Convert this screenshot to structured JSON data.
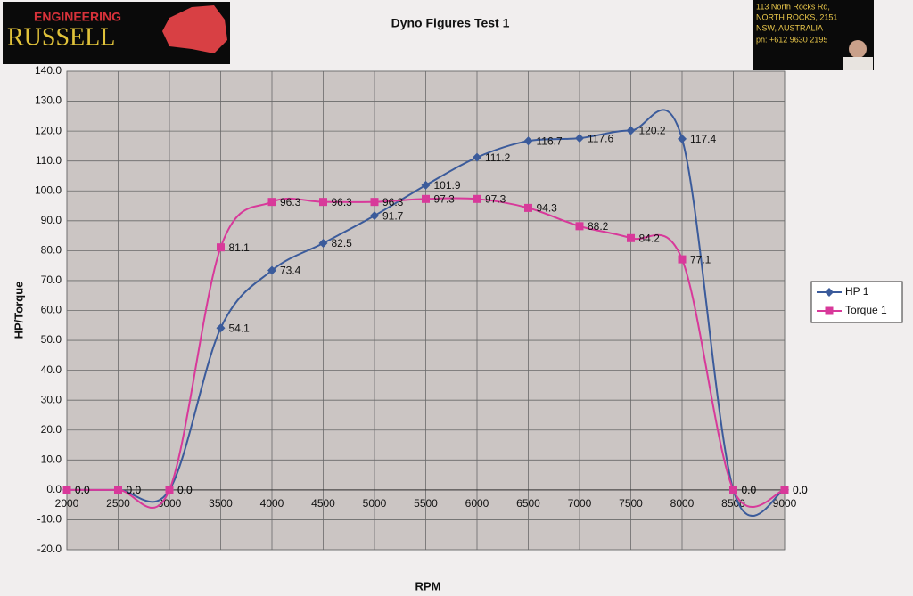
{
  "header": {
    "logo": [
      "ENGINEERING",
      "RUSSELL"
    ],
    "address": [
      "113 North Rocks Rd,",
      "NORTH ROCKS, 2151",
      "NSW, AUSTRALIA",
      "ph: +612 9630 2195"
    ]
  },
  "chart_data": {
    "type": "line",
    "title": "Dyno Figures Test 1",
    "x_label": "RPM",
    "y_label": "HP/Torque",
    "x": [
      2000,
      2500,
      3000,
      3500,
      4000,
      4500,
      5000,
      5500,
      6000,
      6500,
      7000,
      7500,
      8000,
      8500,
      9000
    ],
    "series": [
      {
        "name": "HP 1",
        "color": "#3b5b9b",
        "marker": "diamond",
        "values": [
          0,
          0,
          0,
          54.1,
          73.4,
          82.5,
          91.7,
          101.9,
          111.2,
          116.7,
          117.6,
          120.2,
          117.4,
          0,
          0
        ],
        "value_labels": [
          "0.0",
          "0.0",
          "0.0",
          "54.1",
          "73.4",
          "82.5",
          "91.7",
          "101.9",
          "111.2",
          "116.7",
          "117.6",
          "120.2",
          "117.4",
          "0.0",
          "0.0"
        ]
      },
      {
        "name": "Torque  1",
        "color": "#d8399a",
        "marker": "square",
        "values": [
          0,
          0,
          0,
          81.1,
          96.3,
          96.3,
          96.3,
          97.3,
          97.3,
          94.3,
          88.2,
          84.2,
          77.1,
          0,
          0
        ],
        "value_labels": [
          "0.0",
          "0.0",
          "0.0",
          "81.1",
          "96.3",
          "96.3",
          "96.3",
          "97.3",
          "97.3",
          "94.3",
          "88.2",
          "84.2",
          "77.1",
          "0.0",
          "0.0"
        ]
      }
    ],
    "xlim": [
      2000,
      9000
    ],
    "xticks": [
      2000,
      2500,
      3000,
      3500,
      4000,
      4500,
      5000,
      5500,
      6000,
      6500,
      7000,
      7500,
      8000,
      8500,
      9000
    ],
    "ylim": [
      -20,
      140
    ],
    "yticks": [
      {
        "value": -20,
        "label": "-20.0"
      },
      {
        "value": -10,
        "label": "-10.0"
      },
      {
        "value": 0,
        "label": "0.0"
      },
      {
        "value": 10,
        "label": "10.0"
      },
      {
        "value": 20,
        "label": "20.0"
      },
      {
        "value": 30,
        "label": "30.0"
      },
      {
        "value": 40,
        "label": "40.0"
      },
      {
        "value": 50,
        "label": "50.0"
      },
      {
        "value": 60,
        "label": "60.0"
      },
      {
        "value": 70,
        "label": "70.0"
      },
      {
        "value": 80,
        "label": "80.0"
      },
      {
        "value": 90,
        "label": "90.0"
      },
      {
        "value": 100,
        "label": "100.0"
      },
      {
        "value": 110,
        "label": "110.0"
      },
      {
        "value": 120,
        "label": "120.0"
      },
      {
        "value": 130,
        "label": "130.0"
      },
      {
        "value": 140,
        "label": "140.0"
      }
    ],
    "grid": true,
    "smooth": true,
    "legend": "right"
  }
}
